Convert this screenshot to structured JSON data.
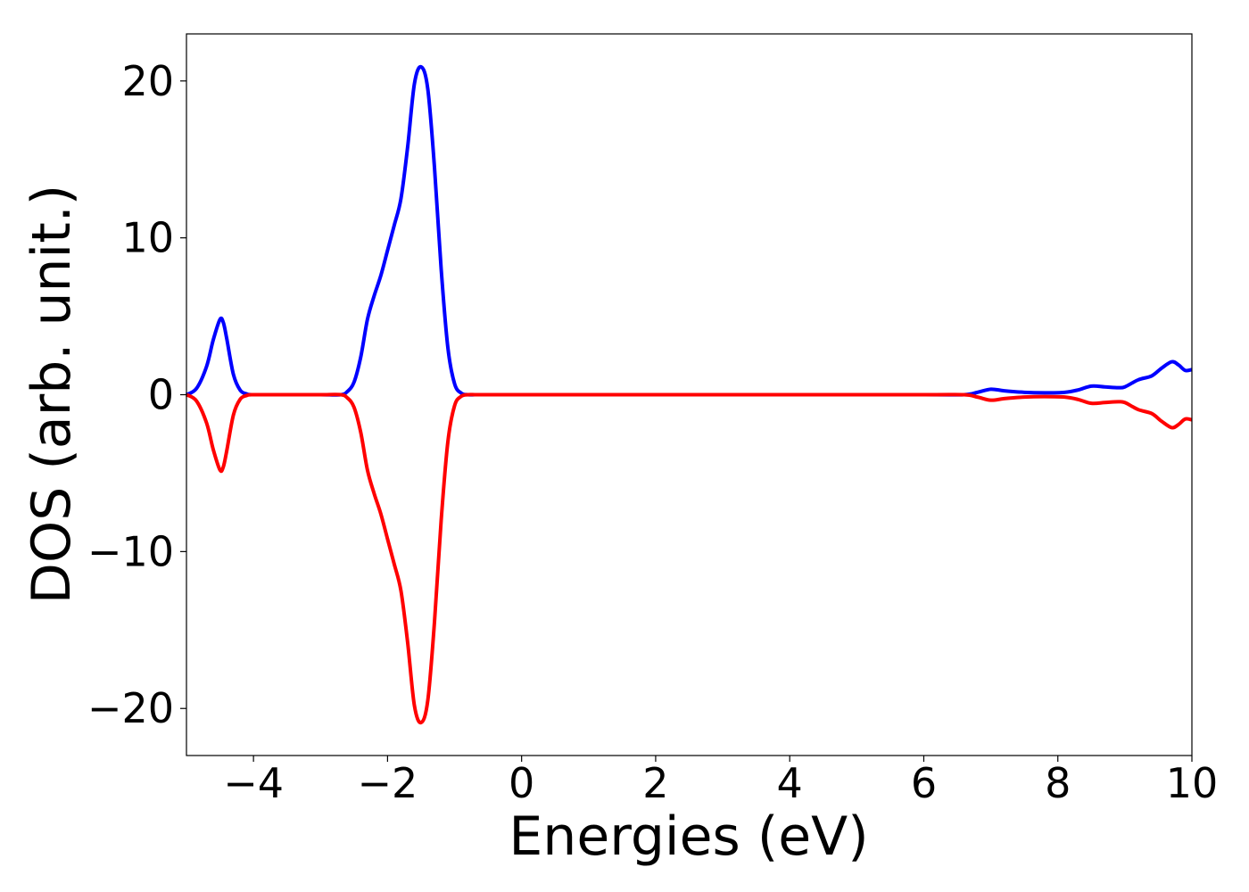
{
  "chart_data": {
    "type": "line",
    "title": "",
    "xlabel": "Energies (eV)",
    "ylabel": "DOS (arb. unit.)",
    "xlim": [
      -5,
      10
    ],
    "ylim": [
      -23,
      23
    ],
    "xticks": [
      -4,
      -2,
      0,
      2,
      4,
      6,
      8,
      10
    ],
    "xtick_labels": [
      "−4",
      "−2",
      "0",
      "2",
      "4",
      "6",
      "8",
      "10"
    ],
    "yticks": [
      -20,
      -10,
      0,
      10,
      20
    ],
    "ytick_labels": [
      "−20",
      "−10",
      "0",
      "10",
      "20"
    ],
    "grid": false,
    "series": [
      {
        "color": "#0000ff",
        "x": [
          -5.0,
          -4.85,
          -4.7,
          -4.6,
          -4.5,
          -4.45,
          -4.4,
          -4.3,
          -4.2,
          -4.1,
          -4.0,
          -3.5,
          -3.0,
          -2.7,
          -2.6,
          -2.5,
          -2.4,
          -2.3,
          -2.2,
          -2.1,
          -2.0,
          -1.9,
          -1.8,
          -1.7,
          -1.6,
          -1.5,
          -1.4,
          -1.3,
          -1.2,
          -1.1,
          -1.0,
          -0.9,
          -0.8,
          -0.7,
          -0.6,
          -0.5,
          0.0,
          2.0,
          4.0,
          6.0,
          6.6,
          6.8,
          7.0,
          7.2,
          7.5,
          7.8,
          8.1,
          8.3,
          8.5,
          8.7,
          8.9,
          9.0,
          9.2,
          9.4,
          9.55,
          9.7,
          9.8,
          9.9,
          10.0
        ],
        "y": [
          0.0,
          0.4,
          1.8,
          3.5,
          4.8,
          4.6,
          3.6,
          1.3,
          0.3,
          0.05,
          0.0,
          0.0,
          0.0,
          0.0,
          0.2,
          0.8,
          2.4,
          4.8,
          6.3,
          7.6,
          9.2,
          10.8,
          12.5,
          15.8,
          19.8,
          20.9,
          19.5,
          14.5,
          8.0,
          3.0,
          0.7,
          0.1,
          0.0,
          0.0,
          0.0,
          0.0,
          0.0,
          0.0,
          0.0,
          0.0,
          0.0,
          0.15,
          0.35,
          0.25,
          0.15,
          0.12,
          0.15,
          0.3,
          0.55,
          0.5,
          0.45,
          0.5,
          0.95,
          1.2,
          1.7,
          2.1,
          1.9,
          1.55,
          1.6
        ]
      },
      {
        "color": "#ff0000",
        "x": [
          -5.0,
          -4.85,
          -4.7,
          -4.6,
          -4.5,
          -4.45,
          -4.4,
          -4.3,
          -4.2,
          -4.1,
          -4.0,
          -3.5,
          -3.0,
          -2.7,
          -2.6,
          -2.5,
          -2.4,
          -2.3,
          -2.2,
          -2.1,
          -2.0,
          -1.9,
          -1.8,
          -1.7,
          -1.6,
          -1.5,
          -1.4,
          -1.3,
          -1.2,
          -1.1,
          -1.0,
          -0.9,
          -0.8,
          -0.7,
          -0.6,
          -0.5,
          0.0,
          2.0,
          4.0,
          6.0,
          6.6,
          6.8,
          7.0,
          7.2,
          7.5,
          7.8,
          8.1,
          8.3,
          8.5,
          8.7,
          8.9,
          9.0,
          9.2,
          9.4,
          9.55,
          9.7,
          9.8,
          9.9,
          10.0
        ],
        "y": [
          0.0,
          -0.4,
          -1.8,
          -3.5,
          -4.8,
          -4.6,
          -3.6,
          -1.3,
          -0.3,
          -0.05,
          0.0,
          0.0,
          0.0,
          0.0,
          -0.2,
          -0.8,
          -2.4,
          -4.8,
          -6.3,
          -7.6,
          -9.2,
          -10.8,
          -12.5,
          -15.8,
          -19.8,
          -20.9,
          -19.5,
          -14.5,
          -8.0,
          -3.0,
          -0.7,
          -0.1,
          0.0,
          0.0,
          0.0,
          0.0,
          0.0,
          0.0,
          0.0,
          0.0,
          0.0,
          -0.15,
          -0.35,
          -0.25,
          -0.15,
          -0.12,
          -0.15,
          -0.3,
          -0.55,
          -0.5,
          -0.45,
          -0.5,
          -0.95,
          -1.2,
          -1.7,
          -2.1,
          -1.9,
          -1.55,
          -1.6
        ]
      }
    ]
  }
}
